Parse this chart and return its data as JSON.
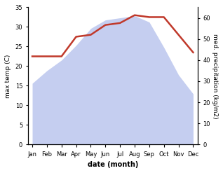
{
  "months": [
    "Jan",
    "Feb",
    "Mar",
    "Apr",
    "May",
    "Jun",
    "Jul",
    "Aug",
    "Sep",
    "Oct",
    "Nov",
    "Dec"
  ],
  "temp": [
    22.5,
    22.5,
    22.5,
    27.5,
    28.0,
    30.5,
    31.0,
    33.0,
    32.5,
    32.5,
    28.0,
    23.5
  ],
  "precip": [
    29,
    35,
    40,
    47,
    55,
    59,
    60,
    61,
    58,
    46,
    33,
    24
  ],
  "temp_ylim": [
    0,
    35
  ],
  "precip_ylim": [
    0,
    65
  ],
  "temp_color": "#c0392b",
  "precip_fill_color": "#c5cef0",
  "xlabel": "date (month)",
  "ylabel_left": "max temp (C)",
  "ylabel_right": "med. precipitation (kg/m2)",
  "temp_yticks": [
    0,
    5,
    10,
    15,
    20,
    25,
    30,
    35
  ],
  "precip_yticks": [
    0,
    10,
    20,
    30,
    40,
    50,
    60
  ],
  "tick_fontsize": 6,
  "label_fontsize": 6.5,
  "xlabel_fontsize": 7
}
